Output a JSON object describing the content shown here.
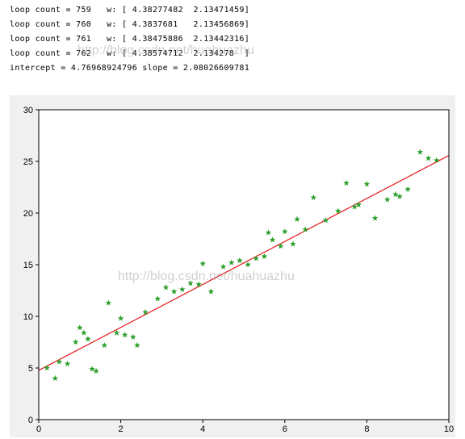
{
  "console": {
    "lines": [
      "loop count = 759   w: [ 4.38277482  2.13471459]",
      "loop count = 760   w: [ 4.3837681   2.13456869]",
      "loop count = 761   w: [ 4.38475886  2.13442316]",
      "loop count = 762   w: [ 4.38574712  2.134278  ]",
      "intercept = 4.76968924796 slope = 2.08026609781"
    ]
  },
  "watermarks": {
    "w1": "http://blog.csdn.net/huahuazhu",
    "w2": "http://blog.csdn.net/huahuazhu"
  },
  "chart": {
    "type": "scatter_with_line",
    "background_color": "#f0f0f0",
    "plot_background": "#ffffff",
    "border_color": "#000000",
    "xlim": [
      0,
      10
    ],
    "ylim": [
      0,
      30
    ],
    "xtick_step": 2,
    "ytick_step": 5,
    "tick_fontsize": 11,
    "line": {
      "x0": 0,
      "y0": 4.77,
      "x1": 10,
      "y1": 25.57,
      "color": "#e41a1c",
      "width": 1.2
    },
    "scatter": {
      "marker": "star",
      "color": "#2ca02c",
      "size": 6,
      "points": [
        [
          0.2,
          5.0
        ],
        [
          0.4,
          4.0
        ],
        [
          0.5,
          5.6
        ],
        [
          0.7,
          5.4
        ],
        [
          0.9,
          7.5
        ],
        [
          1.0,
          8.9
        ],
        [
          1.1,
          8.4
        ],
        [
          1.2,
          7.8
        ],
        [
          1.3,
          4.9
        ],
        [
          1.4,
          4.7
        ],
        [
          1.6,
          7.2
        ],
        [
          1.7,
          11.3
        ],
        [
          1.9,
          8.4
        ],
        [
          2.0,
          9.8
        ],
        [
          2.1,
          8.2
        ],
        [
          2.3,
          8.0
        ],
        [
          2.4,
          7.2
        ],
        [
          2.6,
          10.4
        ],
        [
          2.9,
          11.7
        ],
        [
          3.1,
          12.8
        ],
        [
          3.3,
          12.4
        ],
        [
          3.5,
          12.6
        ],
        [
          3.7,
          13.2
        ],
        [
          3.9,
          13.1
        ],
        [
          4.0,
          15.1
        ],
        [
          4.2,
          12.4
        ],
        [
          4.5,
          14.8
        ],
        [
          4.7,
          15.2
        ],
        [
          4.9,
          15.4
        ],
        [
          5.1,
          15.0
        ],
        [
          5.3,
          15.6
        ],
        [
          5.5,
          15.8
        ],
        [
          5.6,
          18.1
        ],
        [
          5.7,
          17.4
        ],
        [
          5.9,
          16.8
        ],
        [
          6.0,
          18.2
        ],
        [
          6.2,
          17.0
        ],
        [
          6.3,
          19.4
        ],
        [
          6.5,
          18.4
        ],
        [
          6.7,
          21.5
        ],
        [
          7.0,
          19.3
        ],
        [
          7.3,
          20.2
        ],
        [
          7.5,
          22.9
        ],
        [
          7.7,
          20.6
        ],
        [
          7.8,
          20.8
        ],
        [
          8.0,
          22.8
        ],
        [
          8.2,
          19.5
        ],
        [
          8.5,
          21.3
        ],
        [
          8.7,
          21.8
        ],
        [
          8.8,
          21.6
        ],
        [
          9.0,
          22.3
        ],
        [
          9.3,
          25.9
        ],
        [
          9.5,
          25.3
        ],
        [
          9.7,
          25.1
        ]
      ]
    }
  }
}
